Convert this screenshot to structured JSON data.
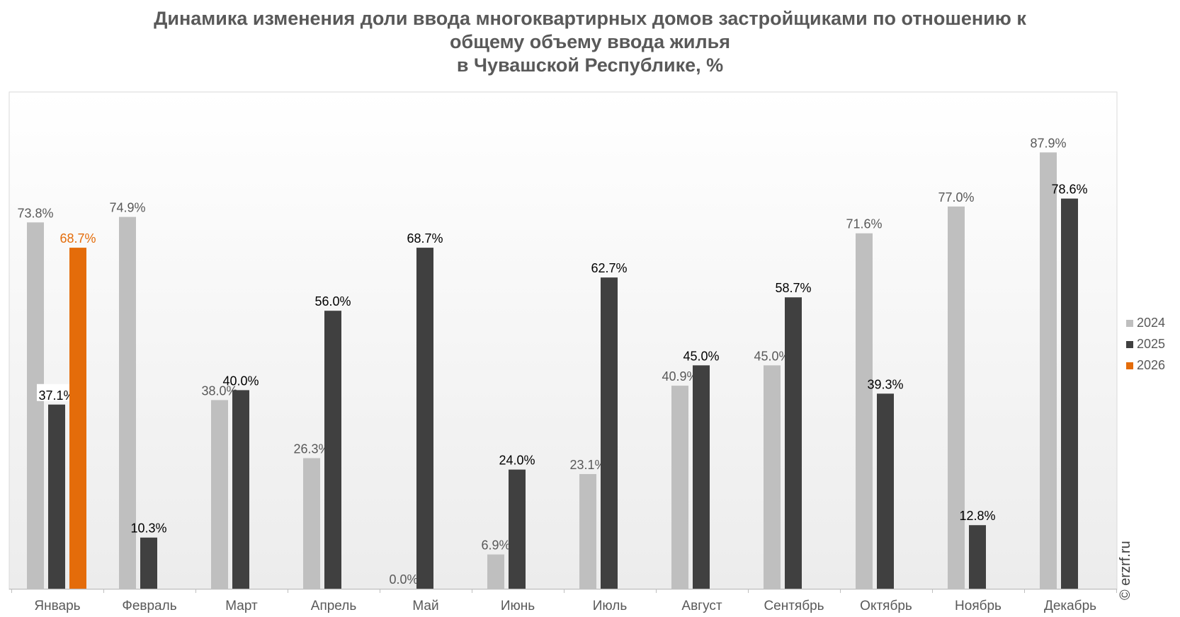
{
  "title": {
    "line1": "Динамика изменения доли ввода многоквартирных домов застройщиками по отношению к",
    "line2": "общему объему ввода жилья",
    "line3": "в Чувашской Республике, %"
  },
  "copyright": "© erzrf.ru",
  "colors": {
    "2024": "#bfbfbf",
    "2025": "#404040",
    "2026": "#e46c0a",
    "label_2024": "#595959",
    "label_2025": "#000000",
    "label_2026": "#e46c0a"
  },
  "chart_data": {
    "type": "bar",
    "categories": [
      "Январь",
      "Февраль",
      "Март",
      "Апрель",
      "Май",
      "Июнь",
      "Июль",
      "Август",
      "Сентябрь",
      "Октябрь",
      "Ноябрь",
      "Декабрь"
    ],
    "series": [
      {
        "name": "2024",
        "values": [
          73.8,
          74.9,
          38.0,
          26.3,
          0.0,
          6.9,
          23.1,
          40.9,
          45.0,
          71.6,
          77.0,
          87.9
        ]
      },
      {
        "name": "2025",
        "values": [
          37.1,
          10.3,
          40.0,
          56.0,
          68.7,
          24.0,
          62.7,
          45.0,
          58.7,
          39.3,
          12.8,
          78.6
        ]
      },
      {
        "name": "2026",
        "values": [
          68.7,
          null,
          null,
          null,
          null,
          null,
          null,
          null,
          null,
          null,
          null,
          null
        ]
      }
    ],
    "value_labels": {
      "2024": [
        "73.8%",
        "74.9%",
        "38.0%",
        "26.3%",
        "0.0%",
        "6.9%",
        "23.1%",
        "40.9%",
        "45.0%",
        "71.6%",
        "77.0%",
        "87.9%"
      ],
      "2025": [
        "37.1%",
        "10.3%",
        "40.0%",
        "56.0%",
        "68.7%",
        "24.0%",
        "62.7%",
        "45.0%",
        "58.7%",
        "39.3%",
        "12.8%",
        "78.6%"
      ],
      "2026": [
        "68.7%",
        "",
        "",
        "",
        "",
        "",
        "",
        "",
        "",
        "",
        "",
        ""
      ]
    },
    "ylim": [
      0,
      100
    ],
    "grid": false,
    "legend": "right",
    "xlabel": "",
    "ylabel": ""
  }
}
